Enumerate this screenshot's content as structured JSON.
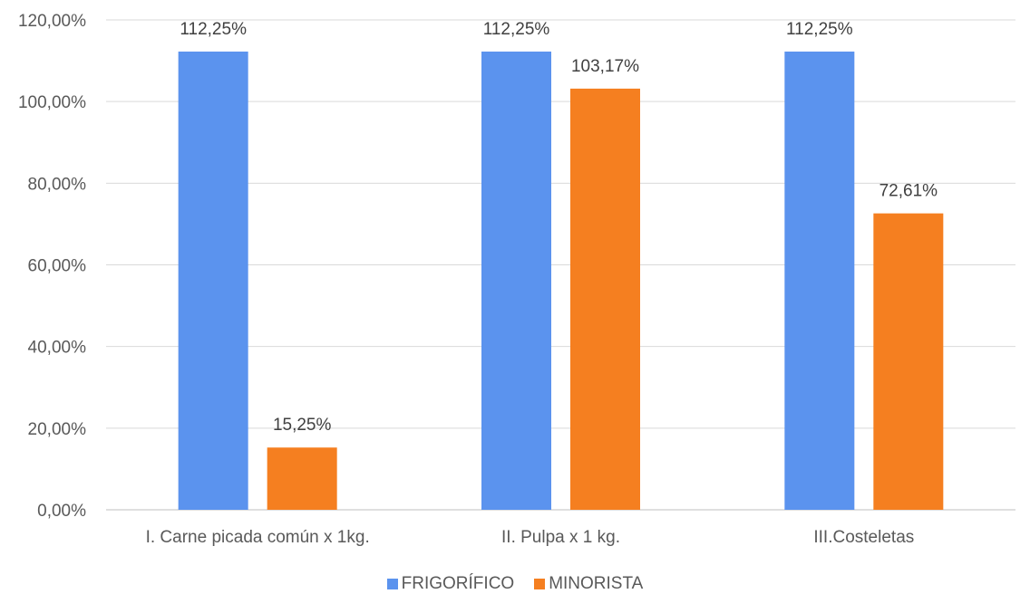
{
  "chart_data": {
    "type": "bar",
    "categories": [
      "I. Carne picada común x 1kg.",
      "II. Pulpa x 1 kg.",
      "III.Costeletas"
    ],
    "series": [
      {
        "name": "FRIGORÍFICO",
        "color": "#5B93EE",
        "values": [
          112.25,
          112.25,
          112.25
        ],
        "labels": [
          "112,25%",
          "112,25%",
          "112,25%"
        ]
      },
      {
        "name": "MINORISTA",
        "color": "#F57F20",
        "values": [
          15.25,
          103.17,
          72.61
        ],
        "labels": [
          "15,25%",
          "103,17%",
          "72,61%"
        ]
      }
    ],
    "ylim": [
      0,
      120
    ],
    "yticks": [
      0,
      20,
      40,
      60,
      80,
      100,
      120
    ],
    "ytick_labels": [
      "0,00%",
      "20,00%",
      "40,00%",
      "60,00%",
      "80,00%",
      "100,00%",
      "120,00%"
    ],
    "grid": true,
    "legend_position": "bottom"
  }
}
